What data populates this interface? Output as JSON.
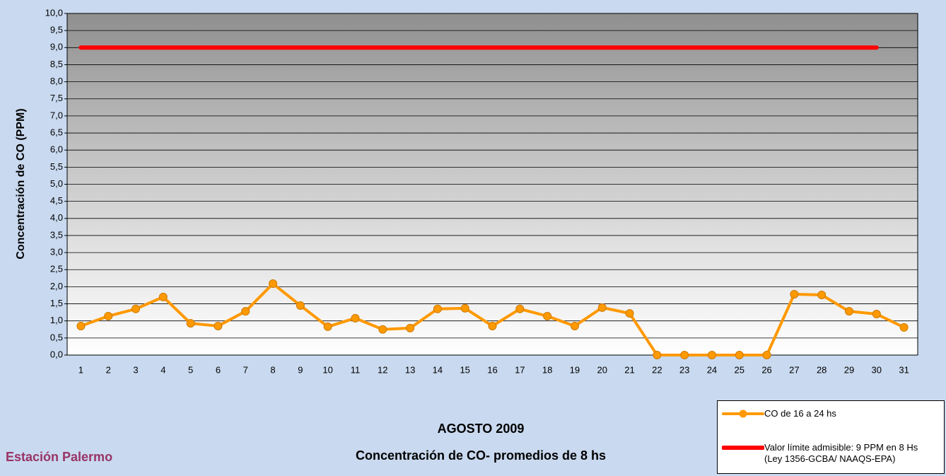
{
  "chart_data": {
    "type": "line",
    "title": "AGOSTO 2009",
    "subtitle": "Concentración de CO- promedios de 8 hs",
    "annotation": "Estación Palermo",
    "y_label": "Concentración de CO (PPM)",
    "categories": [
      "1",
      "2",
      "3",
      "4",
      "5",
      "6",
      "7",
      "8",
      "9",
      "10",
      "11",
      "12",
      "13",
      "14",
      "15",
      "16",
      "17",
      "18",
      "19",
      "20",
      "21",
      "22",
      "23",
      "24",
      "25",
      "26",
      "27",
      "28",
      "29",
      "30",
      "31"
    ],
    "series": [
      {
        "name": "CO de 16 a 24 hs",
        "color": "#ff9900",
        "marker": true,
        "values": [
          0.85,
          1.14,
          1.35,
          1.7,
          0.93,
          0.85,
          1.28,
          2.09,
          1.45,
          0.83,
          1.08,
          0.75,
          0.79,
          1.35,
          1.37,
          0.85,
          1.35,
          1.14,
          0.85,
          1.39,
          1.22,
          0,
          0,
          0,
          0,
          0,
          1.78,
          1.76,
          1.28,
          1.2,
          0.81
        ]
      },
      {
        "name": "Valor límite admisible: 9 PPM en 8 Hs (Ley 1356-GCBA/ NAAQS-EPA)",
        "color": "#ff0000",
        "marker": false,
        "values": [
          9,
          9,
          9,
          9,
          9,
          9,
          9,
          9,
          9,
          9,
          9,
          9,
          9,
          9,
          9,
          9,
          9,
          9,
          9,
          9,
          9,
          9,
          9,
          9,
          9,
          9,
          9,
          9,
          9,
          9,
          null
        ]
      }
    ],
    "ylim": [
      0,
      10
    ],
    "yticks": [
      {
        "value": 0,
        "label": "0,0"
      },
      {
        "value": 0.5,
        "label": "0,5"
      },
      {
        "value": 1,
        "label": "1,0"
      },
      {
        "value": 1.5,
        "label": "1,5"
      },
      {
        "value": 2,
        "label": "2,0"
      },
      {
        "value": 2.5,
        "label": "2,5"
      },
      {
        "value": 3,
        "label": "3,0"
      },
      {
        "value": 3.5,
        "label": "3,5"
      },
      {
        "value": 4,
        "label": "4,0"
      },
      {
        "value": 4.5,
        "label": "4,5"
      },
      {
        "value": 5,
        "label": "5,0"
      },
      {
        "value": 5.5,
        "label": "5,5"
      },
      {
        "value": 6,
        "label": "6,0"
      },
      {
        "value": 6.5,
        "label": "6,5"
      },
      {
        "value": 7,
        "label": "7,0"
      },
      {
        "value": 7.5,
        "label": "7,5"
      },
      {
        "value": 8,
        "label": "8,0"
      },
      {
        "value": 8.5,
        "label": "8,5"
      },
      {
        "value": 9,
        "label": "9,0"
      },
      {
        "value": 9.5,
        "label": "9,5"
      },
      {
        "value": 10,
        "label": "10,0"
      }
    ],
    "grid": true
  }
}
